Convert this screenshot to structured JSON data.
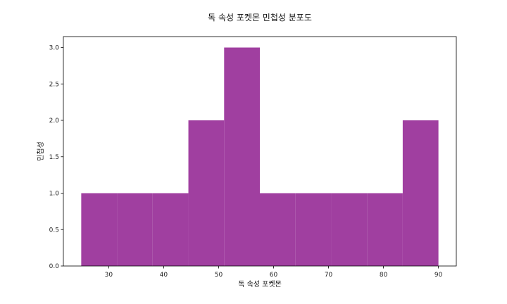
{
  "chart_data": {
    "type": "bar",
    "title": "독 속성 포켓몬 민첩성 분포도",
    "xlabel": "독 속성 포켓몬",
    "ylabel": "민첩성",
    "bins": [
      {
        "start": 25,
        "end": 31.5,
        "count": 1
      },
      {
        "start": 31.5,
        "end": 38,
        "count": 1
      },
      {
        "start": 38,
        "end": 44.5,
        "count": 1
      },
      {
        "start": 44.5,
        "end": 51,
        "count": 2
      },
      {
        "start": 51,
        "end": 57.5,
        "count": 3
      },
      {
        "start": 57.5,
        "end": 64,
        "count": 1
      },
      {
        "start": 64,
        "end": 70.5,
        "count": 1
      },
      {
        "start": 70.5,
        "end": 77,
        "count": 1
      },
      {
        "start": 77,
        "end": 83.5,
        "count": 1
      },
      {
        "start": 83.5,
        "end": 90,
        "count": 2
      }
    ],
    "xlim": [
      21.75,
      93.25
    ],
    "ylim": [
      0,
      3.15
    ],
    "xticks": [
      30,
      40,
      50,
      60,
      70,
      80,
      90
    ],
    "yticks": [
      0.0,
      0.5,
      1.0,
      1.5,
      2.0,
      2.5,
      3.0
    ],
    "ytick_labels": [
      "0.0",
      "0.5",
      "1.0",
      "1.5",
      "2.0",
      "2.5",
      "3.0"
    ],
    "xtick_labels": [
      "30",
      "40",
      "50",
      "60",
      "70",
      "80",
      "90"
    ],
    "bar_color": "#a03fa0",
    "grid": false,
    "legend": "none"
  }
}
